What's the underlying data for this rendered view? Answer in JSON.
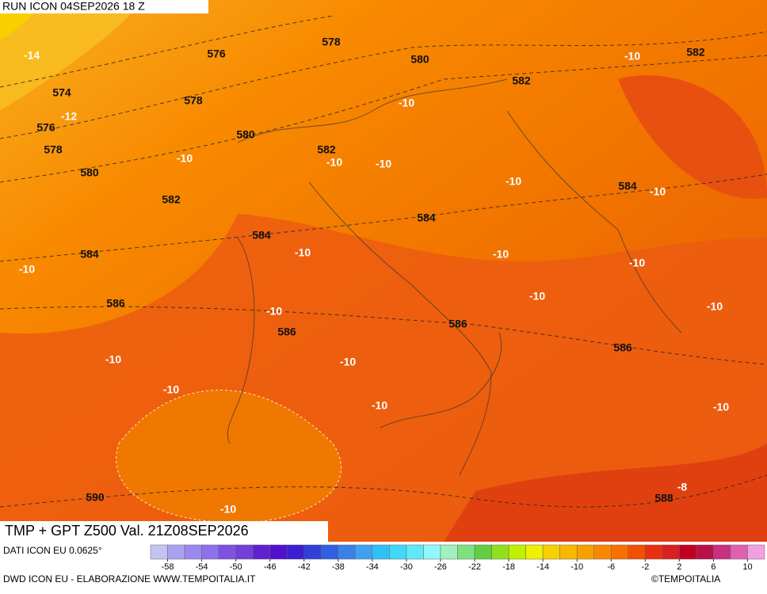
{
  "header": {
    "run": "RUN ICON 04SEP2026 18 Z"
  },
  "title": "TMP + GPT Z500 Val. 21Z08SEP2026",
  "data_source": "DATI ICON EU 0.0625°",
  "credit": "DWD ICON EU - ELABORAZIONE WWW.TEMPOITALIA.IT",
  "copyright": "©TEMPOITALIA",
  "geopotential_labels": [
    578,
    576,
    580,
    582,
    582,
    574,
    578,
    576,
    580,
    578,
    582,
    580,
    582,
    584,
    584,
    584,
    584,
    586,
    586,
    586,
    586,
    590,
    588
  ],
  "temperature_labels": [
    -14,
    -10,
    -10,
    -12,
    -10,
    -10,
    -10,
    -10,
    -10,
    -10,
    -10,
    -10,
    -10,
    -10,
    -10,
    -10,
    -10,
    -10,
    -10,
    -10,
    -10,
    -8,
    -10
  ],
  "colorbar": {
    "ticks": [
      -58,
      -54,
      -50,
      -46,
      -42,
      -38,
      -34,
      -30,
      -26,
      -22,
      -18,
      -14,
      -10,
      -6,
      -2,
      2,
      6,
      10
    ],
    "colors": [
      "#c4c4f0",
      "#aaa2f0",
      "#9a88f0",
      "#8c70ec",
      "#8050e0",
      "#7040d8",
      "#6020d0",
      "#5010d0",
      "#3a20d0",
      "#3040d8",
      "#3060e0",
      "#3a80e8",
      "#40a0f0",
      "#30c0f8",
      "#40d8f8",
      "#60e8f8",
      "#90f8f8",
      "#a0f0c0",
      "#80e080",
      "#60d040",
      "#90e020",
      "#c0f000",
      "#f0f000",
      "#f8d000",
      "#f8b800",
      "#f8a000",
      "#f88800",
      "#f87000",
      "#f05000",
      "#e83010",
      "#d82020",
      "#c00020",
      "#b81048",
      "#c83080",
      "#e060b0",
      "#f0a0e0"
    ]
  }
}
